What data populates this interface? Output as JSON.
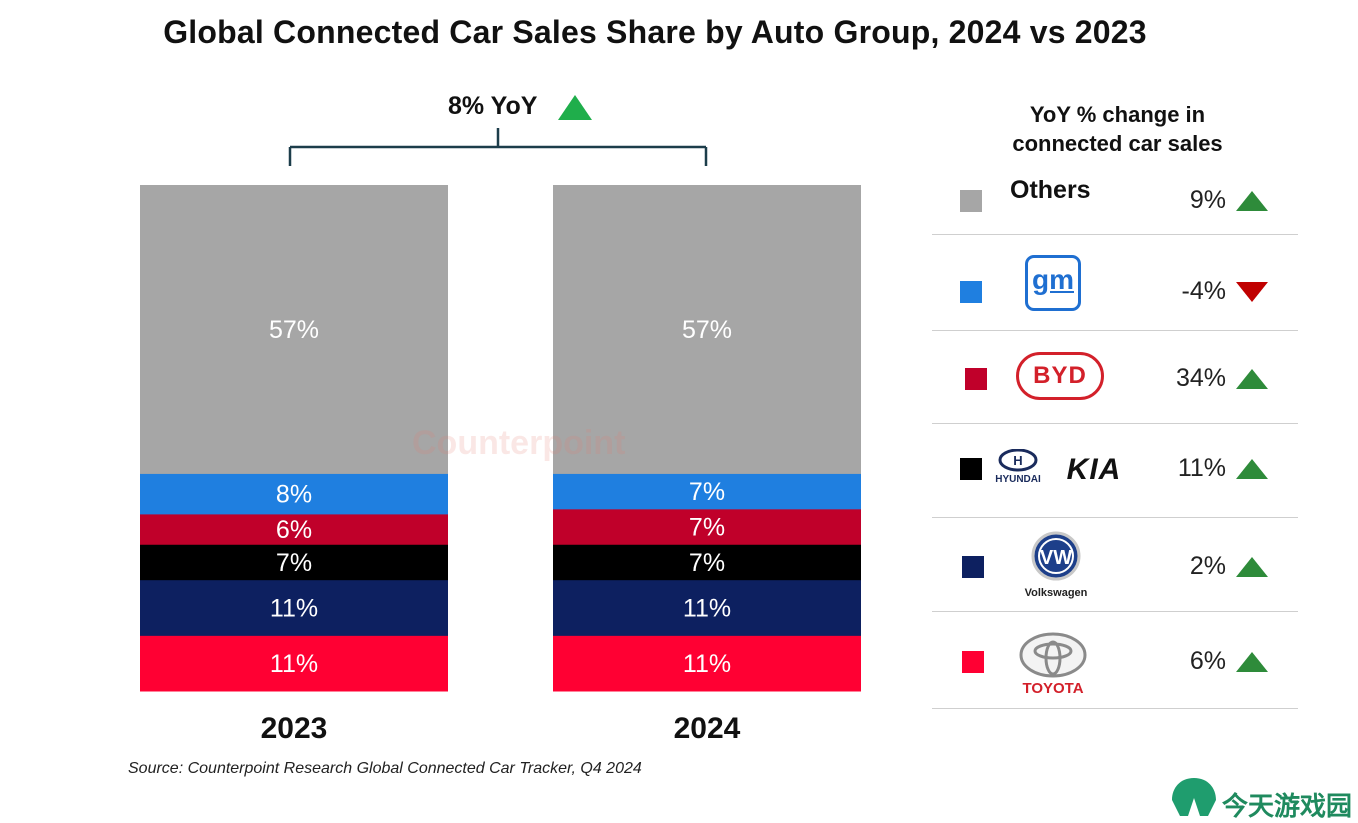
{
  "title": "Global Connected Car Sales Share by Auto Group, 2024 vs 2023",
  "yoy_label": "8% YoY",
  "legend_title_line1": "YoY % change in",
  "legend_title_line2": "connected car sales",
  "source": "Source: Counterpoint Research Global Connected Car Tracker, Q4 2024",
  "watermark_site": "今天游戏园",
  "counterpoint_watermark": "Counterpoint",
  "colors": {
    "others": "#a6a6a6",
    "gm": "#1f7fe0",
    "byd": "#c0002a",
    "hyundai_kia": "#000000",
    "volkswagen": "#0d2060",
    "toyota": "#ff0033",
    "up": "#2e8b3a",
    "down": "#c00000",
    "overall_up": "#1fae4b"
  },
  "legend": [
    {
      "name": "Others",
      "brand": "Others",
      "yoy": "9%",
      "direction": "up",
      "color": "#a6a6a6"
    },
    {
      "name": "GM",
      "brand": "gm",
      "yoy": "-4%",
      "direction": "down",
      "color": "#1f7fe0"
    },
    {
      "name": "BYD",
      "brand": "BYD",
      "yoy": "34%",
      "direction": "up",
      "color": "#c0002a"
    },
    {
      "name": "Hyundai/Kia",
      "brand": "HYUNDAI KIA",
      "yoy": "11%",
      "direction": "up",
      "color": "#000000"
    },
    {
      "name": "Volkswagen",
      "brand": "Volkswagen",
      "yoy": "2%",
      "direction": "up",
      "color": "#0d2060"
    },
    {
      "name": "Toyota",
      "brand": "TOYOTA",
      "yoy": "6%",
      "direction": "up",
      "color": "#ff0033"
    }
  ],
  "chart_data": {
    "type": "bar",
    "stacked": true,
    "title": "Global Connected Car Sales Share by Auto Group, 2024 vs 2023",
    "categories": [
      "2023",
      "2024"
    ],
    "series": [
      {
        "name": "Toyota",
        "values": [
          11,
          11
        ],
        "labels": [
          "11%",
          "11%"
        ],
        "color": "#ff0033"
      },
      {
        "name": "Volkswagen",
        "values": [
          11,
          11
        ],
        "labels": [
          "11%",
          "11%"
        ],
        "color": "#0d2060"
      },
      {
        "name": "Hyundai/Kia",
        "values": [
          7,
          7
        ],
        "labels": [
          "7%",
          "7%"
        ],
        "color": "#000000"
      },
      {
        "name": "BYD",
        "values": [
          6,
          7
        ],
        "labels": [
          "6%",
          "7%"
        ],
        "color": "#c0002a"
      },
      {
        "name": "GM",
        "values": [
          8,
          7
        ],
        "labels": [
          "8%",
          "7%"
        ],
        "color": "#1f7fe0"
      },
      {
        "name": "Others",
        "values": [
          57,
          57
        ],
        "labels": [
          "57%",
          "57%"
        ],
        "color": "#a6a6a6"
      }
    ],
    "ylim": [
      0,
      100
    ],
    "grid": false,
    "legend_position": "right",
    "annotations": [
      "8% YoY"
    ]
  }
}
